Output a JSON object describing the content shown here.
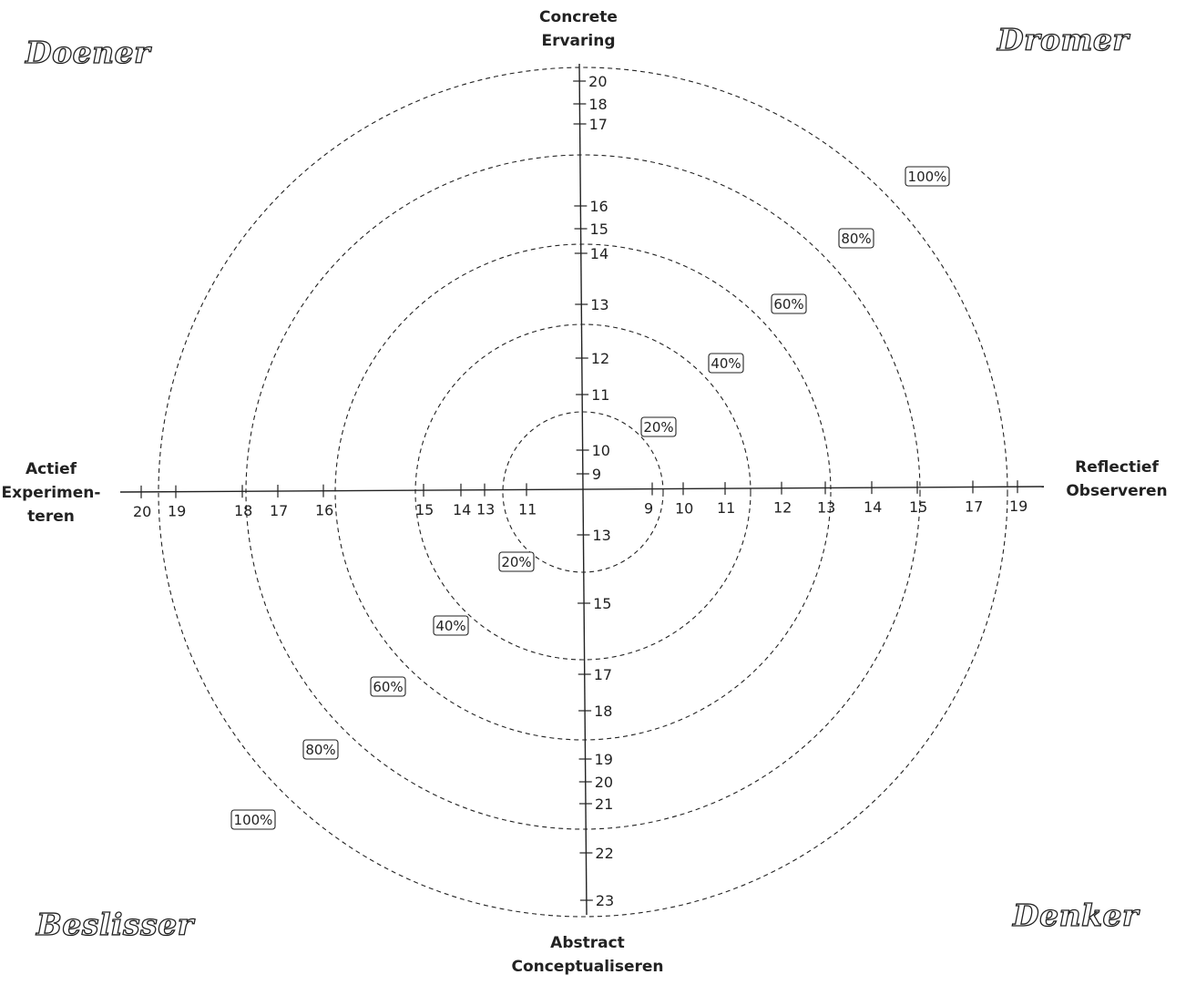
{
  "quadrants": {
    "top_left": "Doener",
    "top_right": "Dromer",
    "bottom_left": "Beslisser",
    "bottom_right": "Denker"
  },
  "axes": {
    "top": [
      "Concrete",
      "Ervaring"
    ],
    "bottom": [
      "Abstract",
      "Conceptualiseren"
    ],
    "left": [
      "Actief",
      "Experimen-",
      "teren"
    ],
    "right": [
      "Reflectief",
      "Observeren"
    ]
  },
  "ring_labels": [
    "20%",
    "40%",
    "60%",
    "80%",
    "100%"
  ],
  "ticks": {
    "top": [
      "9",
      "10",
      "11",
      "12",
      "13",
      "14",
      "15",
      "16",
      "17",
      "18",
      "20"
    ],
    "bottom": [
      "13",
      "15",
      "17",
      "18",
      "19",
      "20",
      "21",
      "22",
      "23"
    ],
    "left": [
      "11",
      "13",
      "14",
      "15",
      "16",
      "17",
      "18",
      "19",
      "20"
    ],
    "right": [
      "9",
      "10",
      "11",
      "12",
      "13",
      "14",
      "15",
      "17",
      "19"
    ]
  },
  "colors": {
    "ink": "#222222",
    "background": "#ffffff"
  }
}
